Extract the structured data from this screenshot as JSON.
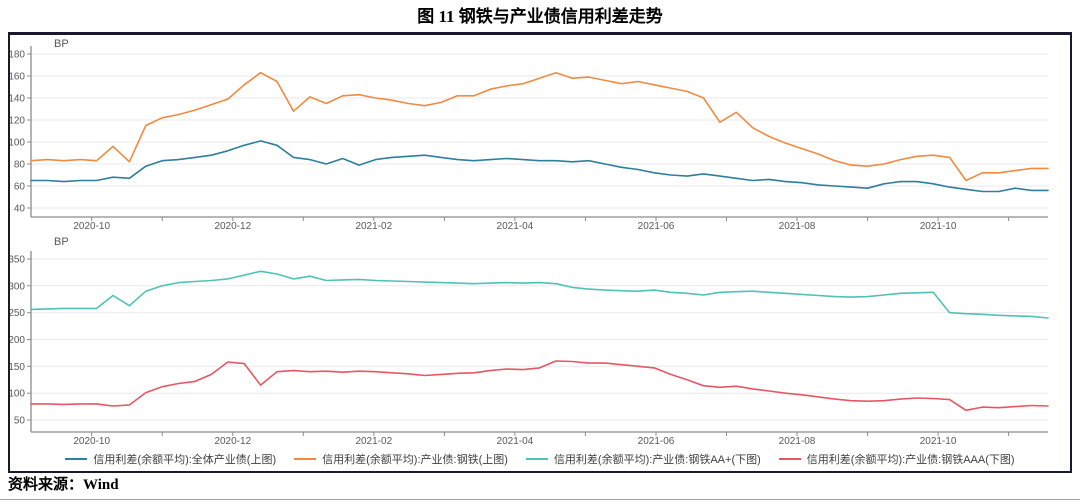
{
  "title": "图 11  钢铁与产业债信用利差走势",
  "source": "资料来源：Wind",
  "chart_data": [
    {
      "type": "line",
      "unit": "BP",
      "position": "上图",
      "ylim": [
        40,
        180
      ],
      "yticks": [
        180,
        160,
        140,
        120,
        100,
        80,
        60,
        40
      ],
      "grid": true,
      "x_ticks": [
        {
          "pos": 3.7,
          "label": "2020-10"
        },
        {
          "pos": 8.0,
          "label": ""
        },
        {
          "pos": 12.3,
          "label": "2020-12"
        },
        {
          "pos": 16.6,
          "label": ""
        },
        {
          "pos": 20.9,
          "label": "2021-02"
        },
        {
          "pos": 25.2,
          "label": ""
        },
        {
          "pos": 29.5,
          "label": "2021-04"
        },
        {
          "pos": 33.8,
          "label": ""
        },
        {
          "pos": 38.1,
          "label": "2021-06"
        },
        {
          "pos": 42.4,
          "label": ""
        },
        {
          "pos": 46.7,
          "label": "2021-08"
        },
        {
          "pos": 51.0,
          "label": ""
        },
        {
          "pos": 55.3,
          "label": "2021-10"
        },
        {
          "pos": 59.6,
          "label": ""
        }
      ],
      "series": [
        {
          "name": "信用利差(余额平均):全体产业债(上图)",
          "color": "#2d7f9d",
          "values": [
            65,
            65,
            64,
            65,
            65,
            68,
            67,
            78,
            83,
            84,
            86,
            88,
            92,
            97,
            101,
            97,
            86,
            84,
            80,
            85,
            79,
            84,
            86,
            87,
            88,
            86,
            84,
            83,
            84,
            85,
            84,
            83,
            83,
            82,
            83,
            80,
            77,
            75,
            72,
            70,
            69,
            71,
            69,
            67,
            65,
            66,
            64,
            63,
            61,
            60,
            59,
            58,
            62,
            64,
            64,
            62,
            59,
            57,
            55,
            55,
            58,
            56,
            56
          ]
        },
        {
          "name": "信用利差(余额平均):产业债:钢铁(上图)",
          "color": "#f08b41",
          "values": [
            83,
            84,
            83,
            84,
            83,
            96,
            82,
            115,
            122,
            125,
            129,
            134,
            139,
            152,
            163,
            155,
            128,
            141,
            135,
            142,
            143,
            140,
            138,
            135,
            133,
            136,
            142,
            142,
            148,
            151,
            153,
            158,
            163,
            158,
            159,
            156,
            153,
            155,
            152,
            149,
            146,
            140,
            118,
            127,
            113,
            105,
            99,
            94,
            89,
            83,
            79,
            78,
            80,
            84,
            87,
            88,
            86,
            65,
            72,
            72,
            74,
            76,
            76
          ]
        }
      ]
    },
    {
      "type": "line",
      "unit": "BP",
      "position": "下图",
      "ylim": [
        50,
        350
      ],
      "yticks": [
        350,
        300,
        250,
        200,
        150,
        100,
        50
      ],
      "grid": true,
      "x_ticks": [
        {
          "pos": 3.7,
          "label": "2020-10"
        },
        {
          "pos": 8.0,
          "label": ""
        },
        {
          "pos": 12.3,
          "label": "2020-12"
        },
        {
          "pos": 16.6,
          "label": ""
        },
        {
          "pos": 20.9,
          "label": "2021-02"
        },
        {
          "pos": 25.2,
          "label": ""
        },
        {
          "pos": 29.5,
          "label": "2021-04"
        },
        {
          "pos": 33.8,
          "label": ""
        },
        {
          "pos": 38.1,
          "label": "2021-06"
        },
        {
          "pos": 42.4,
          "label": ""
        },
        {
          "pos": 46.7,
          "label": "2021-08"
        },
        {
          "pos": 51.0,
          "label": ""
        },
        {
          "pos": 55.3,
          "label": "2021-10"
        },
        {
          "pos": 59.6,
          "label": ""
        }
      ],
      "series": [
        {
          "name": "信用利差(余额平均):产业债:钢铁AA+(下图)",
          "color": "#4fc2b6",
          "values": [
            256,
            257,
            258,
            258,
            258,
            282,
            263,
            290,
            300,
            306,
            308,
            310,
            313,
            320,
            327,
            322,
            313,
            318,
            310,
            311,
            312,
            310,
            309,
            308,
            307,
            306,
            305,
            304,
            305,
            306,
            305,
            306,
            304,
            297,
            294,
            292,
            291,
            290,
            292,
            288,
            286,
            283,
            288,
            289,
            290,
            288,
            286,
            284,
            282,
            280,
            279,
            280,
            283,
            286,
            287,
            288,
            250,
            248,
            247,
            245,
            244,
            243,
            240
          ]
        },
        {
          "name": "信用利差(余额平均):产业债:钢铁AAA(下图)",
          "color": "#e65763",
          "values": [
            80,
            80,
            79,
            80,
            80,
            76,
            78,
            101,
            112,
            118,
            122,
            135,
            158,
            155,
            115,
            140,
            142,
            140,
            141,
            139,
            141,
            140,
            138,
            136,
            133,
            135,
            137,
            138,
            142,
            145,
            144,
            147,
            160,
            159,
            156,
            156,
            153,
            150,
            147,
            135,
            125,
            114,
            111,
            113,
            108,
            104,
            100,
            97,
            93,
            89,
            86,
            85,
            86,
            89,
            91,
            90,
            88,
            68,
            74,
            73,
            75,
            77,
            76
          ]
        }
      ]
    }
  ]
}
